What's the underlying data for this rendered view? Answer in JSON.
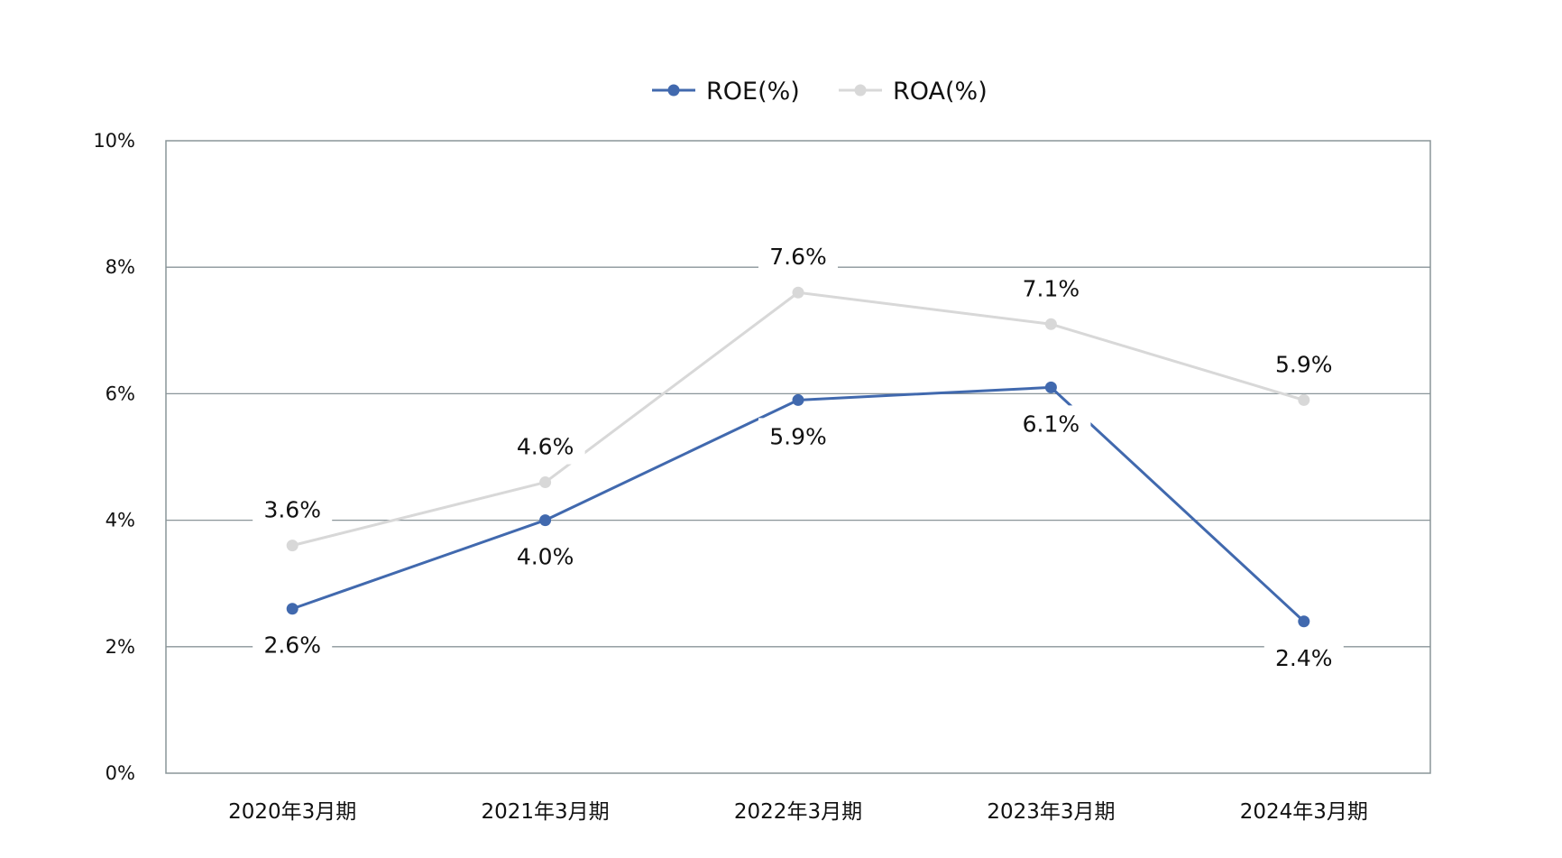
{
  "chart_data": {
    "type": "line",
    "title": "",
    "xlabel": "",
    "ylabel": "",
    "categories": [
      "2020年3月期",
      "2021年3月期",
      "2022年3月期",
      "2023年3月期",
      "2024年3月期"
    ],
    "y_ticks": [
      "0%",
      "2%",
      "4%",
      "6%",
      "8%",
      "10%"
    ],
    "y_tick_values": [
      0,
      2,
      4,
      6,
      8,
      10
    ],
    "ylim": [
      0,
      10
    ],
    "grid": true,
    "legend_position": "top-center",
    "series": [
      {
        "name": "ROE(%)",
        "color": "#4169ae",
        "values": [
          2.6,
          4.0,
          5.9,
          6.1,
          2.4
        ],
        "labels": [
          "2.6%",
          "4.0%",
          "5.9%",
          "6.1%",
          "2.4%"
        ],
        "label_position": "below"
      },
      {
        "name": "ROA(%)",
        "color": "#d8d8d8",
        "values": [
          3.6,
          4.6,
          7.6,
          7.1,
          5.9
        ],
        "labels": [
          "3.6%",
          "4.6%",
          "7.6%",
          "7.1%",
          "5.9%"
        ],
        "label_position": "above"
      }
    ]
  }
}
